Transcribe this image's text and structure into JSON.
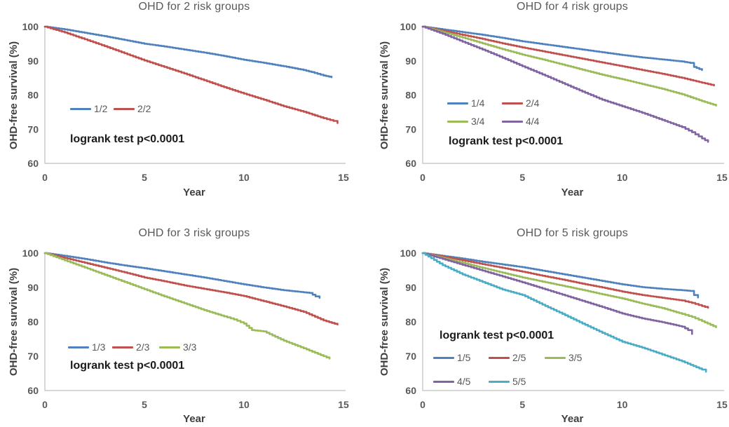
{
  "figure": {
    "background": "#ffffff",
    "palette": {
      "blue": "#4F81BD",
      "red": "#C0504D",
      "green": "#9BBB59",
      "purple": "#8064A2",
      "cyan": "#4BACC6",
      "axis_line": "#bfbfbf",
      "tick_text": "#595959",
      "title_text": "#595959",
      "annotation_text": "#1a1a1a"
    }
  },
  "chart_data": [
    {
      "type": "line",
      "title": "OHD for 2 risk groups",
      "xlabel": "Year",
      "ylabel": "OHD-free survival (%)",
      "annotation": "logrank test p<0.0001",
      "xlim": [
        0,
        15
      ],
      "ylim": [
        60,
        100
      ],
      "x_ticks": [
        0,
        5,
        10,
        15
      ],
      "y_ticks": [
        100,
        90,
        80,
        70,
        60
      ],
      "grid": false,
      "legend_position": "inside-left",
      "series": [
        {
          "name": "1/2",
          "color": "#4F81BD",
          "points": [
            [
              0,
              100
            ],
            [
              1,
              99.2
            ],
            [
              2,
              98.2
            ],
            [
              3,
              97.2
            ],
            [
              4,
              96.1
            ],
            [
              5,
              95.0
            ],
            [
              6,
              94.2
            ],
            [
              7,
              93.3
            ],
            [
              8,
              92.4
            ],
            [
              9,
              91.4
            ],
            [
              10,
              90.3
            ],
            [
              11,
              89.4
            ],
            [
              12,
              88.4
            ],
            [
              13,
              87.3
            ],
            [
              13.4,
              86.7
            ],
            [
              14,
              85.7
            ],
            [
              14.4,
              85.2
            ]
          ]
        },
        {
          "name": "2/2",
          "color": "#C0504D",
          "points": [
            [
              0,
              100
            ],
            [
              1,
              98.3
            ],
            [
              2,
              96.3
            ],
            [
              3,
              94.3
            ],
            [
              4,
              92.2
            ],
            [
              5,
              90.1
            ],
            [
              6,
              88.2
            ],
            [
              7,
              86.3
            ],
            [
              8,
              84.3
            ],
            [
              9,
              82.3
            ],
            [
              10,
              80.4
            ],
            [
              11,
              78.6
            ],
            [
              12,
              76.7
            ],
            [
              13,
              75.1
            ],
            [
              14,
              73.2
            ],
            [
              14.5,
              72.4
            ],
            [
              14.7,
              71.8
            ]
          ]
        }
      ]
    },
    {
      "type": "line",
      "title": "OHD for 4 risk groups",
      "xlabel": "Year",
      "ylabel": "OHD-free survival (%)",
      "annotation": "logrank test p<0.0001",
      "xlim": [
        0,
        15
      ],
      "ylim": [
        60,
        100
      ],
      "x_ticks": [
        0,
        5,
        10,
        15
      ],
      "y_ticks": [
        100,
        90,
        80,
        70,
        60
      ],
      "grid": false,
      "legend_position": "inside-left",
      "series": [
        {
          "name": "1/4",
          "color": "#4F81BD",
          "points": [
            [
              0,
              100
            ],
            [
              1,
              99.2
            ],
            [
              2,
              98.4
            ],
            [
              3,
              97.6
            ],
            [
              4,
              96.7
            ],
            [
              5,
              95.7
            ],
            [
              6,
              94.9
            ],
            [
              7,
              94.1
            ],
            [
              8,
              93.3
            ],
            [
              9,
              92.5
            ],
            [
              10,
              91.7
            ],
            [
              11,
              91.0
            ],
            [
              12,
              90.4
            ],
            [
              13,
              89.8
            ],
            [
              13.4,
              89.4
            ],
            [
              13.6,
              88.2
            ],
            [
              14,
              87.3
            ]
          ]
        },
        {
          "name": "2/4",
          "color": "#C0504D",
          "points": [
            [
              0,
              100
            ],
            [
              1,
              98.8
            ],
            [
              2,
              97.6
            ],
            [
              3,
              96.4
            ],
            [
              4,
              95.1
            ],
            [
              5,
              93.9
            ],
            [
              6,
              92.8
            ],
            [
              7,
              91.7
            ],
            [
              8,
              90.6
            ],
            [
              9,
              89.5
            ],
            [
              10,
              88.4
            ],
            [
              11,
              87.3
            ],
            [
              12,
              86.2
            ],
            [
              13,
              85.0
            ],
            [
              14,
              83.6
            ],
            [
              14.6,
              82.8
            ]
          ]
        },
        {
          "name": "3/4",
          "color": "#9BBB59",
          "points": [
            [
              0,
              100
            ],
            [
              1,
              98.4
            ],
            [
              2,
              96.8
            ],
            [
              3,
              95.1
            ],
            [
              4,
              93.4
            ],
            [
              5,
              91.8
            ],
            [
              6,
              90.4
            ],
            [
              7,
              88.9
            ],
            [
              8,
              87.4
            ],
            [
              9,
              85.9
            ],
            [
              10,
              84.6
            ],
            [
              11,
              83.2
            ],
            [
              12,
              81.8
            ],
            [
              13,
              80.2
            ],
            [
              14,
              78.2
            ],
            [
              14.7,
              76.9
            ]
          ]
        },
        {
          "name": "4/4",
          "color": "#8064A2",
          "points": [
            [
              0,
              100
            ],
            [
              1,
              97.9
            ],
            [
              2,
              95.6
            ],
            [
              3,
              93.3
            ],
            [
              4,
              90.9
            ],
            [
              5,
              88.4
            ],
            [
              6,
              86.0
            ],
            [
              7,
              83.5
            ],
            [
              8,
              81.0
            ],
            [
              9,
              78.6
            ],
            [
              10,
              76.7
            ],
            [
              11,
              74.8
            ],
            [
              12,
              72.7
            ],
            [
              13,
              70.6
            ],
            [
              13.5,
              69.1
            ],
            [
              14,
              67.3
            ],
            [
              14.3,
              66.3
            ]
          ]
        }
      ]
    },
    {
      "type": "line",
      "title": "OHD for 3 risk groups",
      "xlabel": "Year",
      "ylabel": "OHD-free survival (%)",
      "annotation": "logrank test p<0.0001",
      "xlim": [
        0,
        15
      ],
      "ylim": [
        60,
        100
      ],
      "x_ticks": [
        0,
        5,
        10,
        15
      ],
      "y_ticks": [
        100,
        90,
        80,
        70,
        60
      ],
      "grid": false,
      "legend_position": "inside-left",
      "series": [
        {
          "name": "1/3",
          "color": "#4F81BD",
          "points": [
            [
              0,
              100
            ],
            [
              1,
              99.2
            ],
            [
              2,
              98.3
            ],
            [
              3,
              97.3
            ],
            [
              4,
              96.4
            ],
            [
              5,
              95.6
            ],
            [
              6,
              94.7
            ],
            [
              7,
              93.8
            ],
            [
              8,
              92.9
            ],
            [
              9,
              91.9
            ],
            [
              10,
              90.9
            ],
            [
              11,
              90.0
            ],
            [
              12,
              89.2
            ],
            [
              13,
              88.6
            ],
            [
              13.3,
              88.4
            ],
            [
              13.6,
              87.4
            ],
            [
              13.8,
              87.0
            ]
          ]
        },
        {
          "name": "2/3",
          "color": "#C0504D",
          "points": [
            [
              0,
              100
            ],
            [
              1,
              98.6
            ],
            [
              2,
              97.2
            ],
            [
              3,
              95.8
            ],
            [
              4,
              94.4
            ],
            [
              5,
              92.9
            ],
            [
              6,
              91.8
            ],
            [
              7,
              90.6
            ],
            [
              8,
              89.6
            ],
            [
              9,
              88.6
            ],
            [
              10,
              87.5
            ],
            [
              11,
              86.0
            ],
            [
              12,
              84.5
            ],
            [
              13,
              82.9
            ],
            [
              14,
              80.4
            ],
            [
              14.7,
              79.2
            ]
          ]
        },
        {
          "name": "3/3",
          "color": "#9BBB59",
          "points": [
            [
              0,
              100
            ],
            [
              1,
              97.9
            ],
            [
              2,
              95.8
            ],
            [
              3,
              93.7
            ],
            [
              4,
              91.6
            ],
            [
              5,
              89.5
            ],
            [
              6,
              87.4
            ],
            [
              7,
              85.4
            ],
            [
              8,
              83.4
            ],
            [
              9,
              81.6
            ],
            [
              9.5,
              80.7
            ],
            [
              10,
              79.5
            ],
            [
              10.4,
              77.6
            ],
            [
              11,
              77.2
            ],
            [
              12,
              74.5
            ],
            [
              13,
              72.3
            ],
            [
              14,
              70.0
            ],
            [
              14.3,
              69.3
            ]
          ]
        }
      ]
    },
    {
      "type": "line",
      "title": "OHD for 5 risk groups",
      "xlabel": "Year",
      "ylabel": "OHD-free survival (%)",
      "annotation": "logrank test p<0.0001",
      "xlim": [
        0,
        15
      ],
      "ylim": [
        60,
        100
      ],
      "x_ticks": [
        0,
        5,
        10,
        15
      ],
      "y_ticks": [
        100,
        90,
        80,
        70,
        60
      ],
      "grid": false,
      "legend_position": "inside-left",
      "series": [
        {
          "name": "1/5",
          "color": "#4F81BD",
          "points": [
            [
              0,
              100
            ],
            [
              1,
              99.2
            ],
            [
              2,
              98.4
            ],
            [
              3,
              97.5
            ],
            [
              4,
              96.7
            ],
            [
              5,
              95.9
            ],
            [
              6,
              94.9
            ],
            [
              7,
              93.9
            ],
            [
              8,
              92.9
            ],
            [
              9,
              91.9
            ],
            [
              10,
              90.9
            ],
            [
              11,
              90.1
            ],
            [
              12,
              89.6
            ],
            [
              13,
              89.2
            ],
            [
              13.4,
              89.0
            ],
            [
              13.6,
              87.8
            ],
            [
              13.8,
              87.1
            ]
          ]
        },
        {
          "name": "2/5",
          "color": "#C0504D",
          "points": [
            [
              0,
              100
            ],
            [
              1,
              99.0
            ],
            [
              2,
              97.9
            ],
            [
              3,
              96.8
            ],
            [
              4,
              95.7
            ],
            [
              5,
              94.6
            ],
            [
              6,
              93.4
            ],
            [
              7,
              92.3
            ],
            [
              8,
              91.1
            ],
            [
              9,
              90.0
            ],
            [
              10,
              88.8
            ],
            [
              11,
              87.8
            ],
            [
              12,
              87.0
            ],
            [
              13,
              86.2
            ],
            [
              13.5,
              85.5
            ],
            [
              14,
              84.6
            ],
            [
              14.3,
              84.1
            ]
          ]
        },
        {
          "name": "3/5",
          "color": "#9BBB59",
          "points": [
            [
              0,
              100
            ],
            [
              1,
              98.6
            ],
            [
              2,
              97.2
            ],
            [
              3,
              95.7
            ],
            [
              4,
              94.3
            ],
            [
              5,
              92.9
            ],
            [
              6,
              91.7
            ],
            [
              7,
              90.5
            ],
            [
              8,
              89.3
            ],
            [
              9,
              88.0
            ],
            [
              10,
              86.8
            ],
            [
              11,
              85.3
            ],
            [
              12,
              84.0
            ],
            [
              13,
              82.3
            ],
            [
              13.5,
              81.4
            ],
            [
              14,
              80.2
            ],
            [
              14.7,
              78.4
            ]
          ]
        },
        {
          "name": "4/5",
          "color": "#8064A2",
          "points": [
            [
              0,
              100
            ],
            [
              1,
              98.3
            ],
            [
              2,
              96.6
            ],
            [
              3,
              94.9
            ],
            [
              4,
              93.2
            ],
            [
              5,
              91.5
            ],
            [
              6,
              89.7
            ],
            [
              7,
              87.9
            ],
            [
              8,
              86.1
            ],
            [
              9,
              84.3
            ],
            [
              10,
              82.4
            ],
            [
              11,
              81.0
            ],
            [
              12,
              79.9
            ],
            [
              13,
              78.6
            ],
            [
              13.3,
              77.6
            ],
            [
              13.5,
              76.5
            ]
          ]
        },
        {
          "name": "5/5",
          "color": "#4BACC6",
          "points": [
            [
              0,
              100
            ],
            [
              1,
              96.5
            ],
            [
              2,
              93.8
            ],
            [
              3,
              91.6
            ],
            [
              4,
              89.4
            ],
            [
              5,
              87.8
            ],
            [
              6,
              85.0
            ],
            [
              7,
              82.3
            ],
            [
              8,
              79.5
            ],
            [
              9,
              76.8
            ],
            [
              10,
              74.2
            ],
            [
              11,
              72.5
            ],
            [
              12,
              70.5
            ],
            [
              13,
              68.5
            ],
            [
              14,
              66.1
            ],
            [
              14.2,
              65.5
            ]
          ]
        }
      ]
    }
  ]
}
